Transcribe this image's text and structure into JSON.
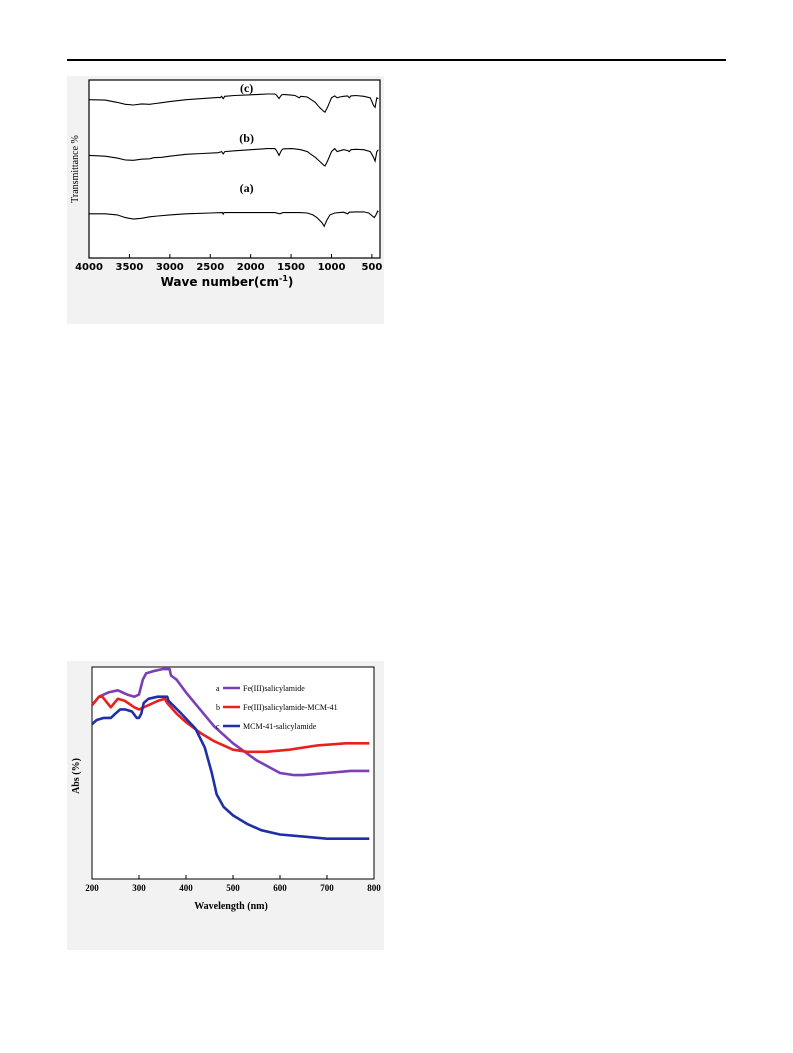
{
  "chart_data": [
    {
      "type": "line",
      "subtype": "ftir_spectra",
      "title": "",
      "xlabel": "Wave number(cm",
      "xlabel_sup": "-1",
      "xlabel_tail": ")",
      "ylabel": "Transmittance %",
      "xlim": [
        4000,
        400
      ],
      "x_reversed": true,
      "xticks": [
        4000,
        3500,
        3000,
        2500,
        2000,
        1500,
        1000,
        500
      ],
      "y_tick_labels": false,
      "legend": "none",
      "grid": false,
      "line_color": "#000000",
      "series": [
        {
          "label": "(a)",
          "offset": 0.62,
          "points": [
            [
              4000,
              0.52
            ],
            [
              3800,
              0.52
            ],
            [
              3650,
              0.55
            ],
            [
              3550,
              0.62
            ],
            [
              3450,
              0.66
            ],
            [
              3350,
              0.64
            ],
            [
              3250,
              0.6
            ],
            [
              3150,
              0.58
            ],
            [
              3000,
              0.55
            ],
            [
              2800,
              0.52
            ],
            [
              2500,
              0.5
            ],
            [
              2350,
              0.49
            ],
            [
              2340,
              0.53
            ],
            [
              2330,
              0.49
            ],
            [
              2200,
              0.49
            ],
            [
              2000,
              0.49
            ],
            [
              1800,
              0.49
            ],
            [
              1700,
              0.49
            ],
            [
              1640,
              0.52
            ],
            [
              1600,
              0.49
            ],
            [
              1500,
              0.49
            ],
            [
              1400,
              0.49
            ],
            [
              1300,
              0.5
            ],
            [
              1230,
              0.55
            ],
            [
              1180,
              0.62
            ],
            [
              1120,
              0.75
            ],
            [
              1090,
              0.85
            ],
            [
              1060,
              0.7
            ],
            [
              1020,
              0.55
            ],
            [
              960,
              0.5
            ],
            [
              900,
              0.49
            ],
            [
              850,
              0.48
            ],
            [
              800,
              0.52
            ],
            [
              780,
              0.48
            ],
            [
              700,
              0.47
            ],
            [
              600,
              0.47
            ],
            [
              540,
              0.5
            ],
            [
              470,
              0.62
            ],
            [
              450,
              0.55
            ],
            [
              430,
              0.45
            ],
            [
              420,
              0.47
            ]
          ]
        },
        {
          "label": "(b)",
          "offset": 0.35,
          "points": [
            [
              4000,
              0.3
            ],
            [
              3800,
              0.32
            ],
            [
              3650,
              0.37
            ],
            [
              3550,
              0.42
            ],
            [
              3450,
              0.43
            ],
            [
              3350,
              0.4
            ],
            [
              3250,
              0.39
            ],
            [
              3200,
              0.36
            ],
            [
              3100,
              0.35
            ],
            [
              3000,
              0.32
            ],
            [
              2800,
              0.27
            ],
            [
              2600,
              0.25
            ],
            [
              2400,
              0.23
            ],
            [
              2360,
              0.2
            ],
            [
              2340,
              0.26
            ],
            [
              2320,
              0.2
            ],
            [
              2200,
              0.18
            ],
            [
              2000,
              0.15
            ],
            [
              1850,
              0.13
            ],
            [
              1800,
              0.12
            ],
            [
              1700,
              0.12
            ],
            [
              1680,
              0.17
            ],
            [
              1650,
              0.3
            ],
            [
              1620,
              0.17
            ],
            [
              1600,
              0.13
            ],
            [
              1500,
              0.12
            ],
            [
              1450,
              0.13
            ],
            [
              1380,
              0.15
            ],
            [
              1300,
              0.2
            ],
            [
              1250,
              0.28
            ],
            [
              1200,
              0.35
            ],
            [
              1150,
              0.45
            ],
            [
              1100,
              0.55
            ],
            [
              1080,
              0.58
            ],
            [
              1050,
              0.45
            ],
            [
              1000,
              0.2
            ],
            [
              960,
              0.12
            ],
            [
              930,
              0.2
            ],
            [
              900,
              0.18
            ],
            [
              850,
              0.15
            ],
            [
              800,
              0.17
            ],
            [
              780,
              0.2
            ],
            [
              760,
              0.15
            ],
            [
              700,
              0.14
            ],
            [
              600,
              0.15
            ],
            [
              520,
              0.2
            ],
            [
              480,
              0.35
            ],
            [
              460,
              0.45
            ],
            [
              440,
              0.2
            ],
            [
              420,
              0.15
            ]
          ]
        },
        {
          "label": "(c)",
          "offset": 0.0,
          "points": [
            [
              4000,
              0.15
            ],
            [
              3800,
              0.16
            ],
            [
              3650,
              0.22
            ],
            [
              3550,
              0.27
            ],
            [
              3450,
              0.29
            ],
            [
              3350,
              0.26
            ],
            [
              3250,
              0.27
            ],
            [
              3180,
              0.25
            ],
            [
              3100,
              0.23
            ],
            [
              3000,
              0.2
            ],
            [
              2800,
              0.15
            ],
            [
              2600,
              0.12
            ],
            [
              2400,
              0.09
            ],
            [
              2380,
              0.1
            ],
            [
              2360,
              0.06
            ],
            [
              2340,
              0.12
            ],
            [
              2320,
              0.06
            ],
            [
              2200,
              0.04
            ],
            [
              2000,
              0.02
            ],
            [
              1900,
              0.01
            ],
            [
              1800,
              0.0
            ],
            [
              1700,
              0.0
            ],
            [
              1680,
              0.03
            ],
            [
              1650,
              0.12
            ],
            [
              1620,
              0.03
            ],
            [
              1600,
              0.01
            ],
            [
              1500,
              0.03
            ],
            [
              1450,
              0.04
            ],
            [
              1400,
              0.1
            ],
            [
              1380,
              0.06
            ],
            [
              1300,
              0.08
            ],
            [
              1250,
              0.15
            ],
            [
              1200,
              0.22
            ],
            [
              1150,
              0.35
            ],
            [
              1100,
              0.45
            ],
            [
              1080,
              0.48
            ],
            [
              1050,
              0.35
            ],
            [
              1000,
              0.1
            ],
            [
              960,
              0.05
            ],
            [
              930,
              0.1
            ],
            [
              900,
              0.08
            ],
            [
              850,
              0.06
            ],
            [
              800,
              0.05
            ],
            [
              780,
              0.1
            ],
            [
              760,
              0.05
            ],
            [
              700,
              0.04
            ],
            [
              600,
              0.06
            ],
            [
              520,
              0.1
            ],
            [
              480,
              0.3
            ],
            [
              460,
              0.35
            ],
            [
              440,
              0.1
            ],
            [
              420,
              0.12
            ]
          ]
        }
      ]
    },
    {
      "type": "line",
      "subtype": "uv_vis_spectra",
      "title": "",
      "xlabel": "Wavelength  (nm)",
      "ylabel": "Abs (%)",
      "xlim": [
        200,
        800
      ],
      "xticks": [
        200,
        300,
        400,
        500,
        600,
        700,
        800
      ],
      "y_tick_labels": false,
      "legend": "top-right",
      "grid": false,
      "series": [
        {
          "letter": "a",
          "name": "Fe(III)salicylamide",
          "color": "#7b3fb8",
          "points": [
            [
              200,
              0.82
            ],
            [
              215,
              0.86
            ],
            [
              235,
              0.88
            ],
            [
              255,
              0.89
            ],
            [
              275,
              0.87
            ],
            [
              290,
              0.86
            ],
            [
              300,
              0.87
            ],
            [
              308,
              0.94
            ],
            [
              315,
              0.97
            ],
            [
              330,
              0.98
            ],
            [
              350,
              0.99
            ],
            [
              365,
              0.99
            ],
            [
              368,
              0.96
            ],
            [
              380,
              0.94
            ],
            [
              400,
              0.88
            ],
            [
              430,
              0.8
            ],
            [
              460,
              0.72
            ],
            [
              500,
              0.64
            ],
            [
              550,
              0.56
            ],
            [
              600,
              0.5
            ],
            [
              630,
              0.49
            ],
            [
              650,
              0.49
            ],
            [
              700,
              0.5
            ],
            [
              750,
              0.51
            ],
            [
              790,
              0.51
            ]
          ]
        },
        {
          "letter": "b",
          "name": "Fe(III)salicylamide-MCM-41",
          "color": "#e8211f",
          "points": [
            [
              200,
              0.82
            ],
            [
              215,
              0.86
            ],
            [
              222,
              0.86
            ],
            [
              240,
              0.81
            ],
            [
              255,
              0.85
            ],
            [
              270,
              0.84
            ],
            [
              290,
              0.81
            ],
            [
              300,
              0.8
            ],
            [
              320,
              0.82
            ],
            [
              340,
              0.84
            ],
            [
              355,
              0.85
            ],
            [
              360,
              0.83
            ],
            [
              380,
              0.78
            ],
            [
              400,
              0.74
            ],
            [
              430,
              0.69
            ],
            [
              460,
              0.65
            ],
            [
              500,
              0.61
            ],
            [
              530,
              0.6
            ],
            [
              570,
              0.6
            ],
            [
              620,
              0.61
            ],
            [
              680,
              0.63
            ],
            [
              740,
              0.64
            ],
            [
              790,
              0.64
            ]
          ]
        },
        {
          "letter": "c",
          "name": "MCM-41-salicylamide",
          "color": "#1f2fa8",
          "points": [
            [
              200,
              0.73
            ],
            [
              210,
              0.75
            ],
            [
              225,
              0.76
            ],
            [
              240,
              0.76
            ],
            [
              250,
              0.78
            ],
            [
              260,
              0.8
            ],
            [
              270,
              0.8
            ],
            [
              285,
              0.79
            ],
            [
              295,
              0.76
            ],
            [
              300,
              0.76
            ],
            [
              305,
              0.78
            ],
            [
              310,
              0.83
            ],
            [
              320,
              0.85
            ],
            [
              340,
              0.86
            ],
            [
              360,
              0.86
            ],
            [
              363,
              0.84
            ],
            [
              390,
              0.78
            ],
            [
              420,
              0.71
            ],
            [
              440,
              0.62
            ],
            [
              455,
              0.5
            ],
            [
              465,
              0.4
            ],
            [
              480,
              0.34
            ],
            [
              500,
              0.3
            ],
            [
              530,
              0.26
            ],
            [
              560,
              0.23
            ],
            [
              600,
              0.21
            ],
            [
              650,
              0.2
            ],
            [
              700,
              0.19
            ],
            [
              750,
              0.19
            ],
            [
              790,
              0.19
            ]
          ]
        }
      ]
    }
  ]
}
